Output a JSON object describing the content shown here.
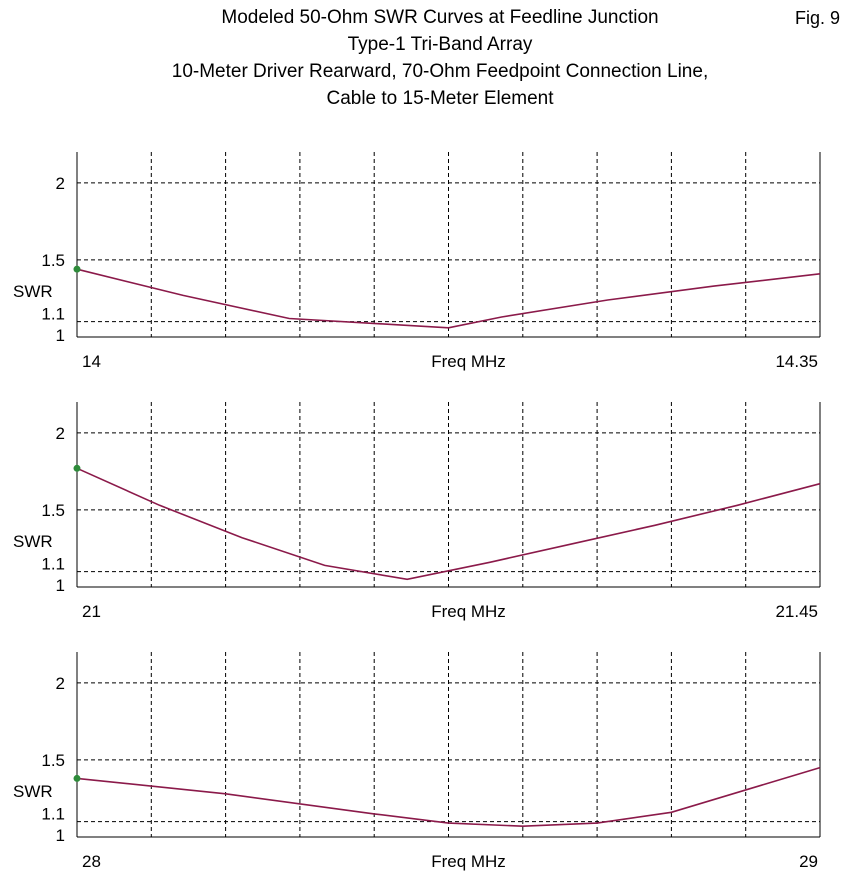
{
  "figure": {
    "title_lines": [
      "Modeled 50-Ohm SWR Curves at Feedline Junction",
      "Type-1 Tri-Band Array",
      "10-Meter Driver Rearward, 70-Ohm Feedpoint Connection Line,",
      "Cable to 15-Meter Element"
    ],
    "fig_label": "Fig. 9"
  },
  "colors": {
    "curve": "#8b1a4a",
    "start_marker": "#2e8b3a",
    "grid": "#000000",
    "axis": "#000000"
  },
  "chart_data": [
    {
      "type": "line",
      "xlabel": "Freq MHz",
      "ylabel": "SWR",
      "xlim": [
        14,
        14.35
      ],
      "x_tick_labels": [
        "14",
        "14.35"
      ],
      "y_ticks": [
        1,
        1.1,
        1.5,
        2
      ],
      "y_tick_labels": [
        "1",
        "1.1",
        "1.5",
        "2"
      ],
      "ylim": [
        1,
        2.2
      ],
      "grid": true,
      "series": [
        {
          "x": [
            14.0,
            14.05,
            14.1,
            14.15,
            14.175,
            14.2,
            14.25,
            14.3,
            14.35
          ],
          "y": [
            1.44,
            1.27,
            1.12,
            1.08,
            1.06,
            1.13,
            1.24,
            1.33,
            1.41
          ]
        }
      ]
    },
    {
      "type": "line",
      "xlabel": "Freq MHz",
      "ylabel": "SWR",
      "xlim": [
        21,
        21.45
      ],
      "x_tick_labels": [
        "21",
        "21.45"
      ],
      "y_ticks": [
        1,
        1.1,
        1.5,
        2
      ],
      "y_tick_labels": [
        "1",
        "1.1",
        "1.5",
        "2"
      ],
      "ylim": [
        1,
        2.2
      ],
      "grid": true,
      "series": [
        {
          "x": [
            21.0,
            21.05,
            21.1,
            21.15,
            21.2,
            21.25,
            21.3,
            21.35,
            21.4,
            21.45
          ],
          "y": [
            1.77,
            1.53,
            1.32,
            1.14,
            1.05,
            1.16,
            1.28,
            1.4,
            1.53,
            1.67
          ]
        }
      ]
    },
    {
      "type": "line",
      "xlabel": "Freq MHz",
      "ylabel": "SWR",
      "xlim": [
        28,
        29
      ],
      "x_tick_labels": [
        "28",
        "29"
      ],
      "y_ticks": [
        1,
        1.1,
        1.5,
        2
      ],
      "y_tick_labels": [
        "1",
        "1.1",
        "1.5",
        "2"
      ],
      "ylim": [
        1,
        2.2
      ],
      "grid": true,
      "series": [
        {
          "x": [
            28.0,
            28.2,
            28.4,
            28.5,
            28.6,
            28.7,
            28.8,
            29.0
          ],
          "y": [
            1.38,
            1.28,
            1.15,
            1.09,
            1.07,
            1.09,
            1.16,
            1.45
          ]
        }
      ]
    }
  ]
}
